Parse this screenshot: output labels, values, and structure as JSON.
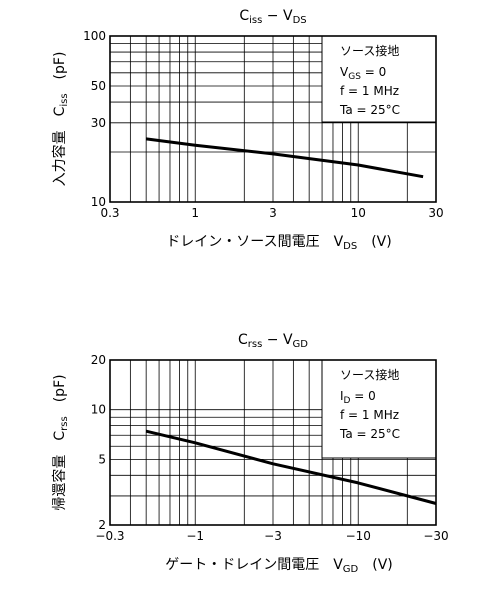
{
  "chart_data": [
    {
      "type": "line",
      "title": {
        "main": "C",
        "sub": "iss",
        "sep": " − V",
        "sub2": "DS"
      },
      "xscale": "log",
      "yscale": "log",
      "xlim": [
        0.3,
        30
      ],
      "ylim": [
        10,
        100
      ],
      "x_ticks": [
        0.3,
        1,
        3,
        10,
        30
      ],
      "x_tick_labels": [
        "0.3",
        "1",
        "3",
        "10",
        "30"
      ],
      "y_ticks": [
        10,
        30,
        50,
        100
      ],
      "y_tick_labels": [
        "10",
        "30",
        "50",
        "100"
      ],
      "xlabel": {
        "main": "ドレイン・ソース間電圧　V",
        "sub": "DS",
        "unit": "　(V)"
      },
      "ylabel": {
        "main": "入力容量　C",
        "sub": "iss",
        "unit": "　(pF)"
      },
      "legend": {
        "title": "ソース接地",
        "lines": [
          {
            "main": "V",
            "sub": "GS",
            "rest": " = 0"
          },
          {
            "main": "f = 1 MHz",
            "sub": "",
            "rest": ""
          },
          {
            "main": "Ta = 25°C",
            "sub": "",
            "rest": ""
          }
        ]
      },
      "series": [
        {
          "x": [
            0.5,
            1,
            3,
            10,
            25
          ],
          "y": [
            24,
            22,
            19.5,
            16.7,
            14.2
          ]
        }
      ]
    },
    {
      "type": "line",
      "title": {
        "main": "C",
        "sub": "rss",
        "sep": " − V",
        "sub2": "GD"
      },
      "xscale": "log",
      "yscale": "log",
      "xlim": [
        0.3,
        30
      ],
      "ylim": [
        2,
        20
      ],
      "x_ticks": [
        0.3,
        1,
        3,
        10,
        30
      ],
      "x_tick_labels": [
        "−0.3",
        "−1",
        "−3",
        "−10",
        "−30"
      ],
      "y_ticks": [
        2,
        5,
        10,
        20
      ],
      "y_tick_labels": [
        "2",
        "5",
        "10",
        "20"
      ],
      "xlabel": {
        "main": "ゲート・ドレイン間電圧　V",
        "sub": "GD",
        "unit": "　(V)"
      },
      "ylabel": {
        "main": "帰還容量　C",
        "sub": "rss",
        "unit": "　(pF)"
      },
      "legend": {
        "title": "ソース接地",
        "lines": [
          {
            "main": "I",
            "sub": "D",
            "rest": " = 0"
          },
          {
            "main": "f = 1 MHz",
            "sub": "",
            "rest": ""
          },
          {
            "main": "Ta = 25°C",
            "sub": "",
            "rest": ""
          }
        ]
      },
      "series": [
        {
          "x": [
            0.5,
            1,
            3,
            10,
            30
          ],
          "y": [
            7.4,
            6.3,
            4.7,
            3.6,
            2.7
          ]
        }
      ]
    }
  ]
}
